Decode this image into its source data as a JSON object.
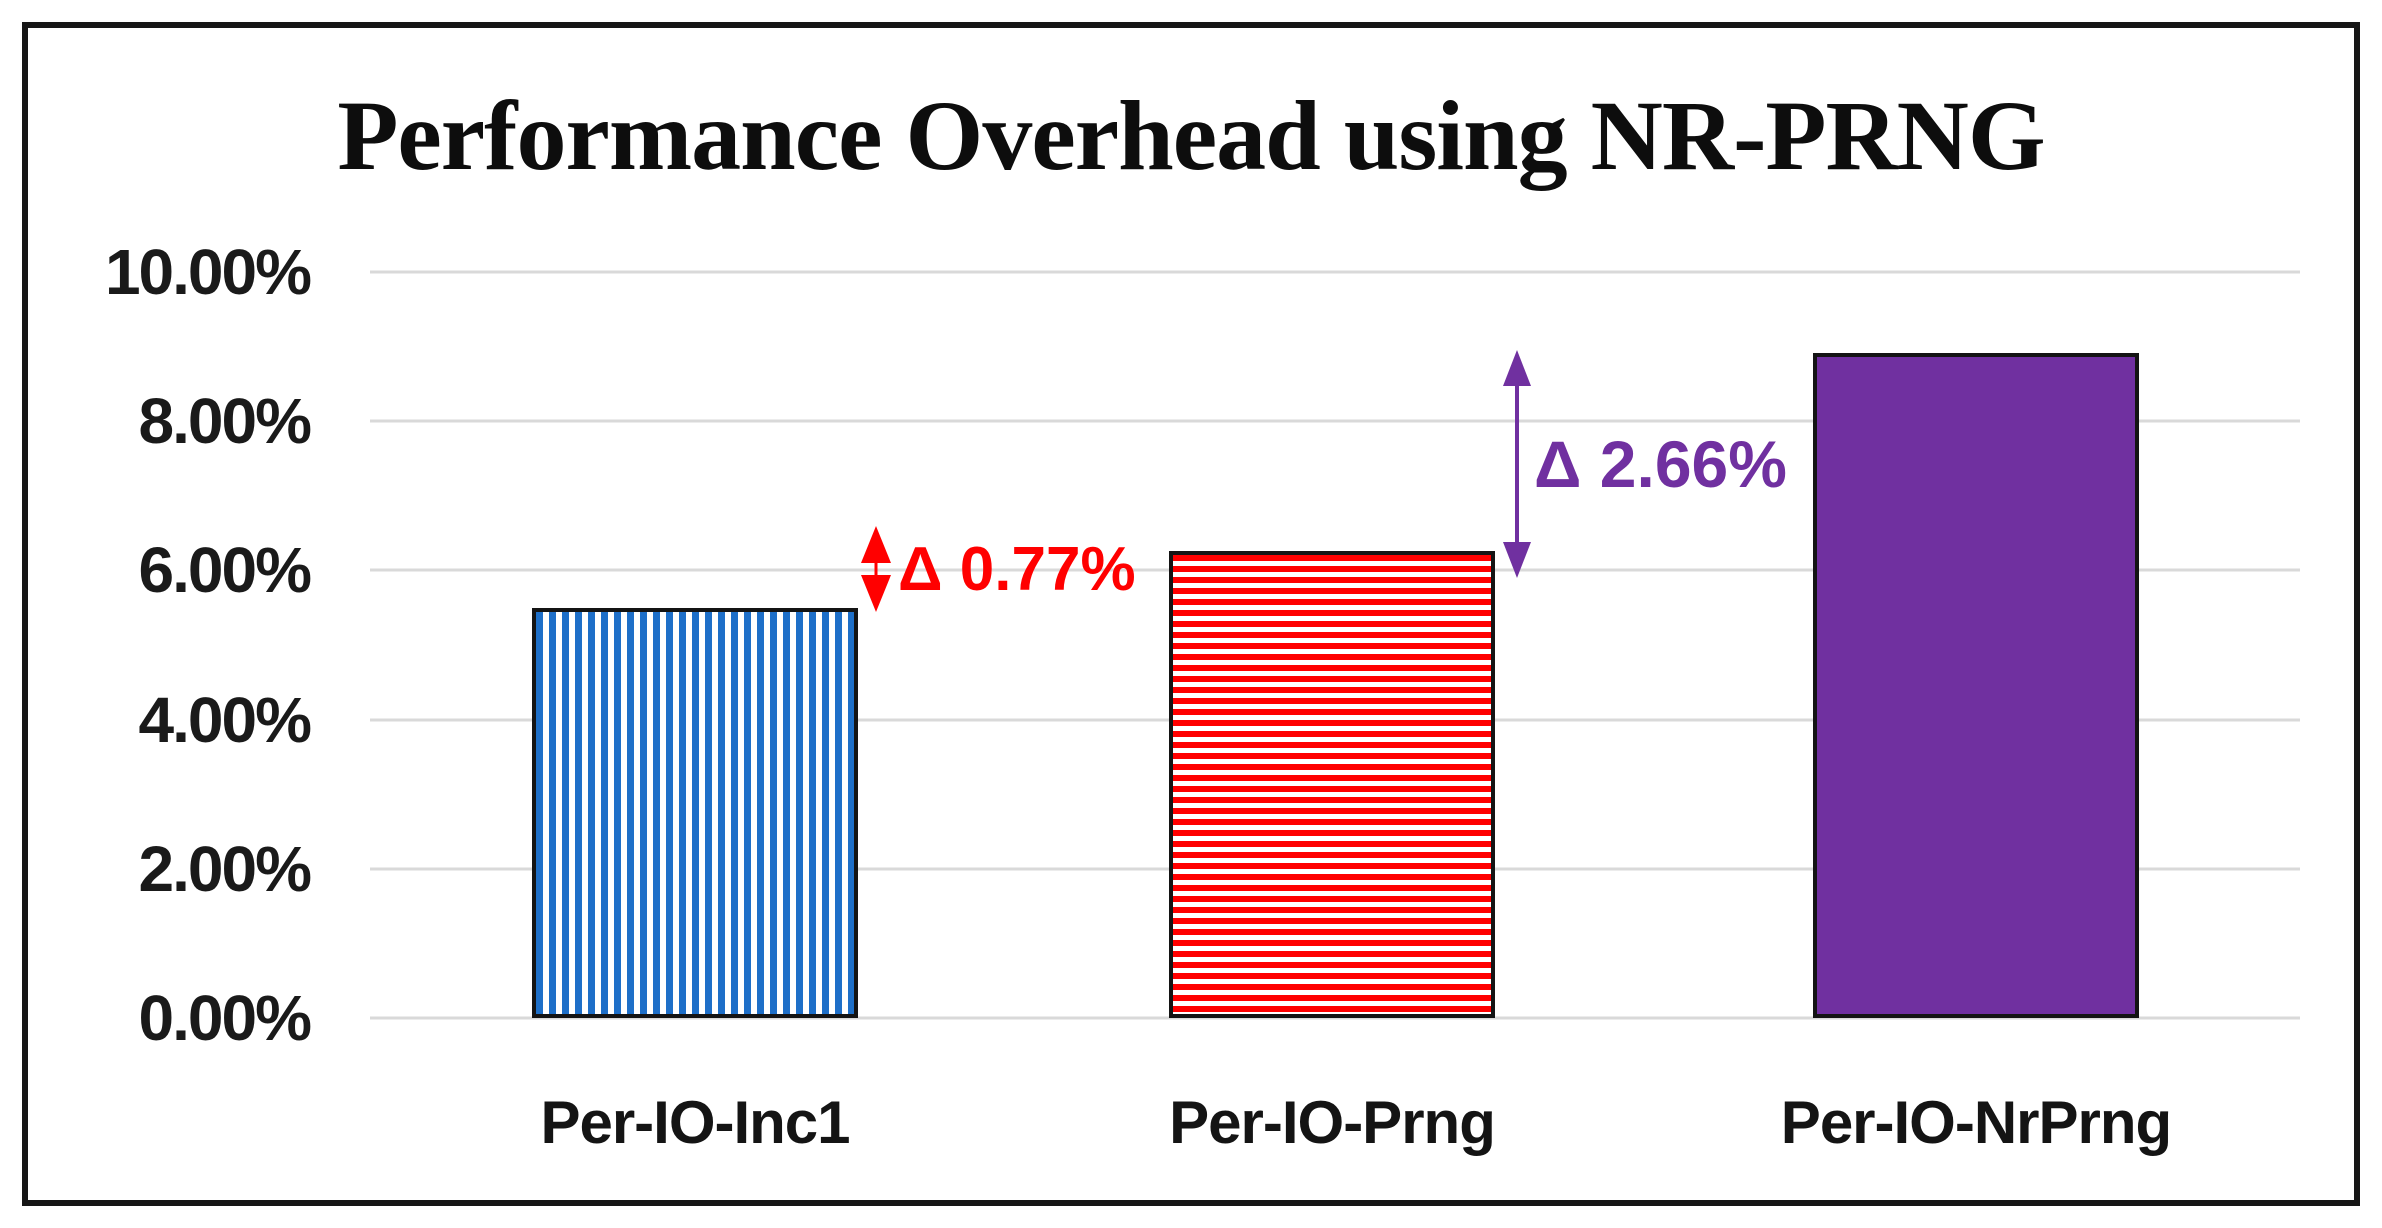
{
  "figure": {
    "title": "Performance Overhead using NR-PRNG"
  },
  "chart_data": {
    "type": "bar",
    "title": "Performance Overhead using NR-PRNG",
    "categories": [
      "Per-IO-Inc1",
      "Per-IO-Prng",
      "Per-IO-NrPrng"
    ],
    "values": [
      5.49,
      6.26,
      8.92
    ],
    "unit": "%",
    "xlabel": "",
    "ylabel": "",
    "ylim": [
      0,
      10
    ],
    "y_tick_labels": [
      "0.00%",
      "2.00%",
      "4.00%",
      "6.00%",
      "8.00%",
      "10.00%"
    ],
    "grid": true,
    "legend": "none",
    "bar_styles": [
      {
        "color": "#1E6FC8",
        "pattern": "vertical-stripes",
        "label": "Per-IO-Inc1"
      },
      {
        "color": "#FF0000",
        "pattern": "horizontal-stripes",
        "label": "Per-IO-Prng"
      },
      {
        "color": "#7030A0",
        "pattern": "solid",
        "label": "Per-IO-NrPrng"
      }
    ],
    "annotations": [
      {
        "text": "Δ 0.77%",
        "color": "#FF0000",
        "between": [
          "Per-IO-Inc1",
          "Per-IO-Prng"
        ],
        "icon": "double-headed-vertical-arrow"
      },
      {
        "text": "Δ 2.66%",
        "color": "#7030A0",
        "between": [
          "Per-IO-Prng",
          "Per-IO-NrPrng"
        ],
        "icon": "double-headed-vertical-arrow"
      }
    ]
  }
}
